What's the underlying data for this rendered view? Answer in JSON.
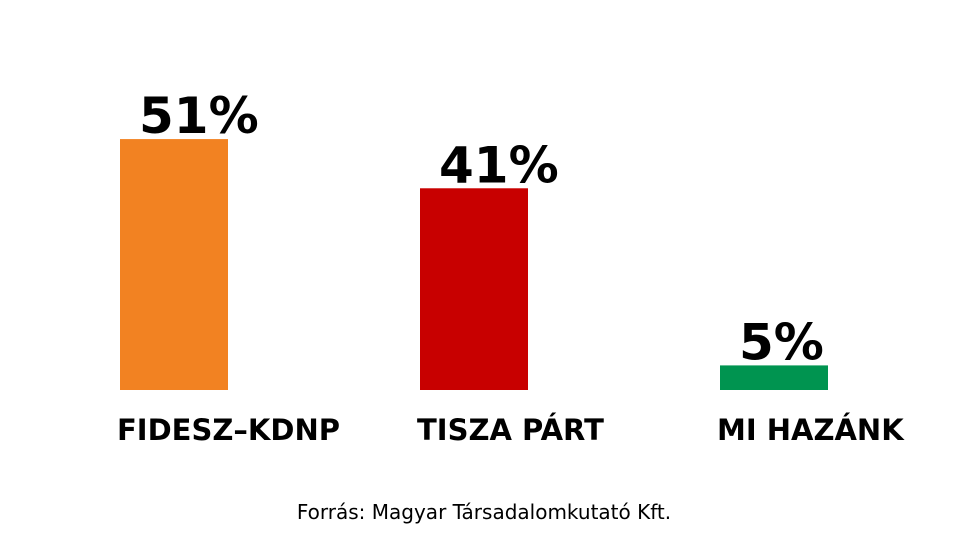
{
  "chart_data": {
    "type": "bar",
    "categories": [
      "FIDESZ–KDNP",
      "TISZA PÁRT",
      "MI HAZÁNK"
    ],
    "values": [
      51,
      41,
      5
    ],
    "value_labels": [
      "51%",
      "41%",
      "5%"
    ],
    "colors": [
      "#f28222",
      "#c80000",
      "#009450"
    ],
    "source": "Forrás: Magyar Társadalomkutató Kft."
  }
}
